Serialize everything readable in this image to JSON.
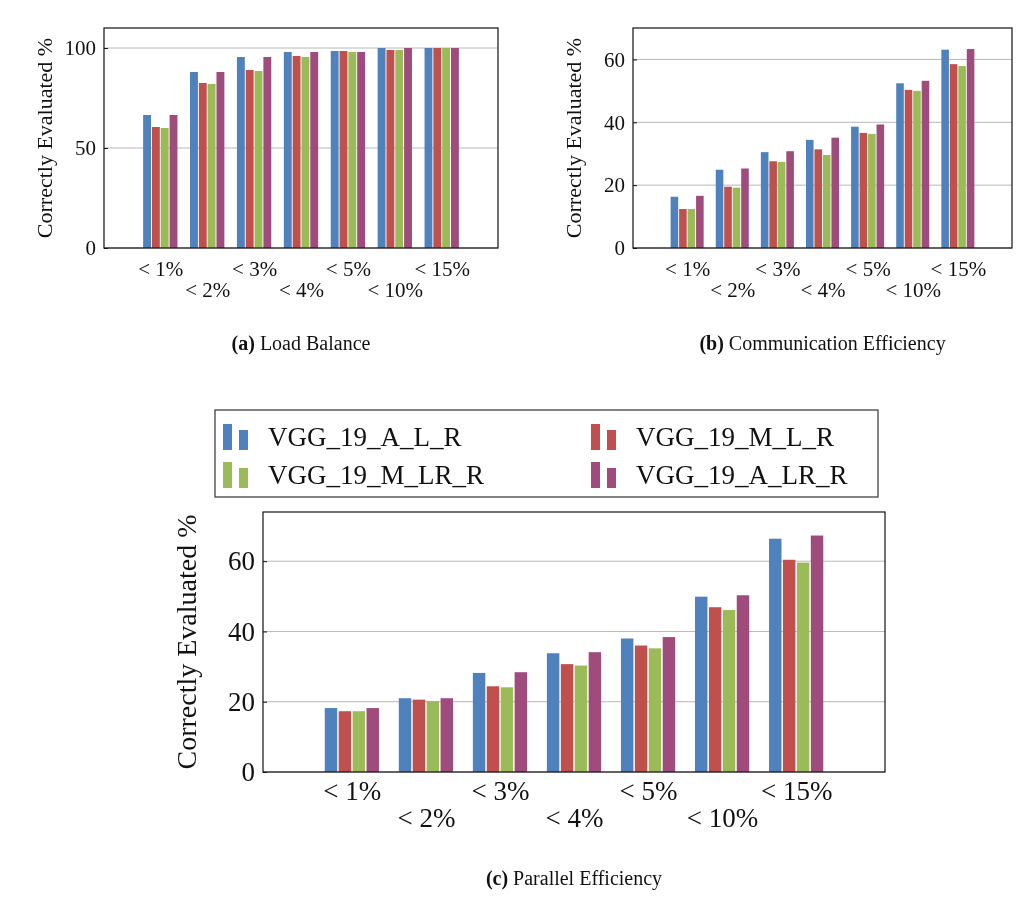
{
  "chart_data": [
    {
      "type": "bar",
      "title": "(a) Load Balance",
      "ylabel": "Correctly Evaluated %",
      "categories": [
        "< 1%",
        "< 2%",
        "< 3%",
        "< 4%",
        "< 5%",
        "< 10%",
        "< 15%"
      ],
      "ylim": [
        0,
        110
      ],
      "yticks": [
        0,
        50,
        100
      ],
      "grid": "y",
      "legend": false,
      "series": [
        {
          "color": "#4f81bd",
          "values": [
            66.5,
            88,
            95.5,
            98,
            98.5,
            100,
            100
          ]
        },
        {
          "color": "#c0504d",
          "values": [
            60.5,
            82.5,
            89,
            96,
            98.5,
            99,
            100
          ]
        },
        {
          "color": "#9bbb59",
          "values": [
            60,
            82,
            88.5,
            95.5,
            98,
            99,
            100
          ]
        },
        {
          "color": "#9f4c7c",
          "values": [
            66.5,
            88,
            95.5,
            98,
            98,
            100,
            100
          ]
        }
      ]
    },
    {
      "type": "bar",
      "title": "(b) Communication Efficiency",
      "ylabel": "Correctly Evaluated %",
      "categories": [
        "< 1%",
        "< 2%",
        "< 3%",
        "< 4%",
        "< 5%",
        "< 10%",
        "< 15%"
      ],
      "ylim": [
        0,
        70
      ],
      "yticks": [
        0,
        20,
        40,
        60
      ],
      "grid": "y",
      "legend": false,
      "series": [
        {
          "color": "#4f81bd",
          "values": [
            16.3,
            24.9,
            30.5,
            34.4,
            38.6,
            52.4,
            63.1
          ]
        },
        {
          "color": "#c0504d",
          "values": [
            12.4,
            19.5,
            27.6,
            31.4,
            36.6,
            50.3,
            58.5
          ]
        },
        {
          "color": "#9bbb59",
          "values": [
            12.4,
            19.2,
            27.4,
            29.6,
            36.3,
            50,
            57.9
          ]
        },
        {
          "color": "#9f4c7c",
          "values": [
            16.6,
            25.3,
            30.8,
            35.1,
            39.3,
            53.2,
            63.3
          ]
        }
      ]
    },
    {
      "type": "bar",
      "title": "(c) Parallel Efficiency",
      "ylabel": "Correctly Evaluated %",
      "categories": [
        "< 1%",
        "< 2%",
        "< 3%",
        "< 4%",
        "< 5%",
        "< 10%",
        "< 15%"
      ],
      "ylim": [
        0,
        74
      ],
      "yticks": [
        0,
        20,
        40,
        60
      ],
      "grid": "y",
      "legend": "top",
      "series": [
        {
          "name": "VGG_19_A_L_R",
          "color": "#4f81bd",
          "values": [
            18.2,
            21,
            28.2,
            33.8,
            38,
            49.9,
            66.4
          ]
        },
        {
          "name": "VGG_19_M_L_R",
          "color": "#c0504d",
          "values": [
            17.3,
            20.6,
            24.4,
            30.7,
            36,
            46.9,
            60.4
          ]
        },
        {
          "name": "VGG_19_M_LR_R",
          "color": "#9bbb59",
          "values": [
            17.3,
            20.2,
            24.1,
            30.3,
            35.2,
            46.1,
            59.6
          ]
        },
        {
          "name": "VGG_19_A_LR_R",
          "color": "#9f4c7c",
          "values": [
            18.2,
            21,
            28.4,
            34.1,
            38.4,
            50.3,
            67.3
          ]
        }
      ]
    }
  ]
}
